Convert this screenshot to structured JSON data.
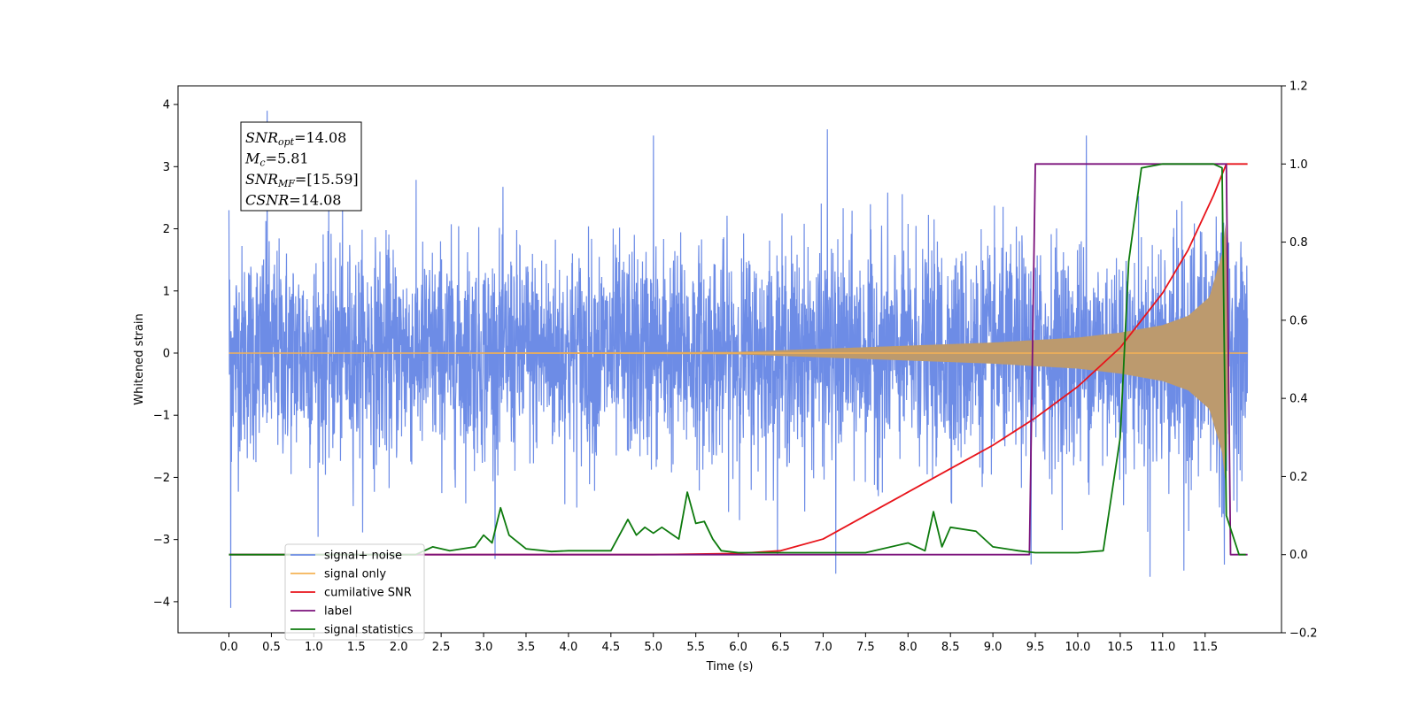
{
  "chart_data": {
    "type": "line",
    "xlabel": "Time (s)",
    "ylabel": "Whitened strain",
    "xlim": [
      -0.6,
      12.4
    ],
    "ylim_left": [
      -4.5,
      4.3
    ],
    "ylim_right": [
      -0.2,
      1.2
    ],
    "x_ticks": [
      0.0,
      0.5,
      1.0,
      1.5,
      2.0,
      2.5,
      3.0,
      3.5,
      4.0,
      4.5,
      5.0,
      5.5,
      6.0,
      6.5,
      7.0,
      7.5,
      8.0,
      8.5,
      9.0,
      9.5,
      10.0,
      10.5,
      11.0,
      11.5
    ],
    "x_tick_labels": [
      "0.0",
      "0.5",
      "1.0",
      "1.5",
      "2.0",
      "2.5",
      "3.0",
      "3.5",
      "4.0",
      "4.5",
      "5.0",
      "5.5",
      "6.0",
      "6.5",
      "7.0",
      "7.5",
      "8.0",
      "8.5",
      "9.0",
      "9.5",
      "10.0",
      "10.5",
      "11.0",
      "11.5"
    ],
    "y_left_ticks": [
      4,
      3,
      2,
      1,
      0,
      -1,
      -2,
      -3,
      -4
    ],
    "y_left_tick_labels": [
      "4",
      "3",
      "2",
      "1",
      "0",
      "−1",
      "−2",
      "−3",
      "−4"
    ],
    "y_right_ticks": [
      1.2,
      1.0,
      0.8,
      0.6,
      0.4,
      0.2,
      0.0,
      -0.2
    ],
    "y_right_tick_labels": [
      "1.2",
      "1.0",
      "0.8",
      "0.6",
      "0.4",
      "0.2",
      "0.0",
      "−0.2"
    ],
    "legend_position": "lower-left",
    "series": [
      {
        "name": "signal+ noise",
        "axis": "left",
        "color": "#6d8ce6",
        "noise_std": 1.0,
        "x_range": [
          0.0,
          12.0
        ],
        "peak_values": [
          [
            0.0,
            2.3
          ],
          [
            0.02,
            -4.1
          ],
          [
            0.45,
            3.9
          ],
          [
            5.0,
            3.5
          ],
          [
            7.05,
            3.6
          ],
          [
            7.15,
            -3.55
          ],
          [
            10.1,
            3.5
          ],
          [
            10.85,
            -3.6
          ],
          [
            11.25,
            -3.5
          ],
          [
            9.45,
            -3.4
          ]
        ]
      },
      {
        "name": "signal only",
        "axis": "left",
        "color": "#f5b255",
        "fill_color": "#bc9a6e",
        "envelope": [
          [
            0.0,
            0.0
          ],
          [
            6.0,
            0.02
          ],
          [
            7.0,
            0.07
          ],
          [
            8.0,
            0.12
          ],
          [
            9.0,
            0.17
          ],
          [
            10.0,
            0.25
          ],
          [
            10.5,
            0.33
          ],
          [
            11.0,
            0.45
          ],
          [
            11.3,
            0.6
          ],
          [
            11.55,
            0.9
          ],
          [
            11.7,
            1.6
          ],
          [
            11.75,
            2.2
          ],
          [
            11.78,
            0.0
          ],
          [
            12.0,
            0.0
          ]
        ]
      },
      {
        "name": "cumilative SNR",
        "axis": "right",
        "color": "#e8141b",
        "x": [
          0.0,
          5.0,
          6.0,
          6.5,
          7.0,
          7.5,
          8.0,
          8.5,
          9.0,
          9.5,
          10.0,
          10.5,
          11.0,
          11.3,
          11.6,
          11.75,
          12.0
        ],
        "values": [
          0.0,
          0.0,
          0.003,
          0.01,
          0.04,
          0.1,
          0.16,
          0.22,
          0.28,
          0.35,
          0.43,
          0.53,
          0.67,
          0.78,
          0.92,
          1.0,
          1.0
        ]
      },
      {
        "name": "label",
        "axis": "right",
        "color": "#7b127b",
        "x": [
          0.0,
          9.43,
          9.5,
          11.75,
          11.8,
          12.0
        ],
        "values": [
          0.0,
          0.0,
          1.0,
          1.0,
          0.0,
          0.0
        ]
      },
      {
        "name": "signal statistics",
        "axis": "right",
        "color": "#0d7a0d",
        "x": [
          0.0,
          2.2,
          2.4,
          2.6,
          2.9,
          3.0,
          3.1,
          3.2,
          3.3,
          3.5,
          3.8,
          4.0,
          4.5,
          4.6,
          4.7,
          4.8,
          4.9,
          5.0,
          5.1,
          5.3,
          5.4,
          5.5,
          5.6,
          5.7,
          5.8,
          6.0,
          6.5,
          7.0,
          7.5,
          8.0,
          8.2,
          8.3,
          8.4,
          8.5,
          8.8,
          9.0,
          9.3,
          9.5,
          10.0,
          10.3,
          10.5,
          10.6,
          10.75,
          11.0,
          11.6,
          11.7,
          11.75,
          11.9,
          11.98
        ],
        "values": [
          0.0,
          0.0,
          0.02,
          0.01,
          0.02,
          0.05,
          0.03,
          0.12,
          0.05,
          0.015,
          0.008,
          0.01,
          0.01,
          0.05,
          0.09,
          0.05,
          0.07,
          0.055,
          0.07,
          0.04,
          0.16,
          0.08,
          0.085,
          0.04,
          0.01,
          0.005,
          0.005,
          0.005,
          0.005,
          0.03,
          0.01,
          0.11,
          0.02,
          0.07,
          0.06,
          0.02,
          0.01,
          0.005,
          0.005,
          0.01,
          0.3,
          0.75,
          0.99,
          1.0,
          1.0,
          0.99,
          0.1,
          0.0,
          0.0
        ]
      }
    ],
    "legend_entries": [
      {
        "name": "signal+ noise",
        "color": "#6d8ce6"
      },
      {
        "name": "signal only",
        "color": "#f5b255"
      },
      {
        "name": "cumilative SNR",
        "color": "#e8141b"
      },
      {
        "name": "label",
        "color": "#7b127b"
      },
      {
        "name": "signal statistics",
        "color": "#0d7a0d"
      }
    ],
    "annotation": {
      "lines": [
        {
          "base": "SNR",
          "sub": "opt",
          "value": "=14.08"
        },
        {
          "base": "M",
          "sub": "c",
          "value": "=5.81"
        },
        {
          "base": "SNR",
          "sub": "MF",
          "value": "=[15.59]"
        },
        {
          "base": "CSNR",
          "sub": "",
          "value": "=14.08"
        }
      ]
    }
  }
}
